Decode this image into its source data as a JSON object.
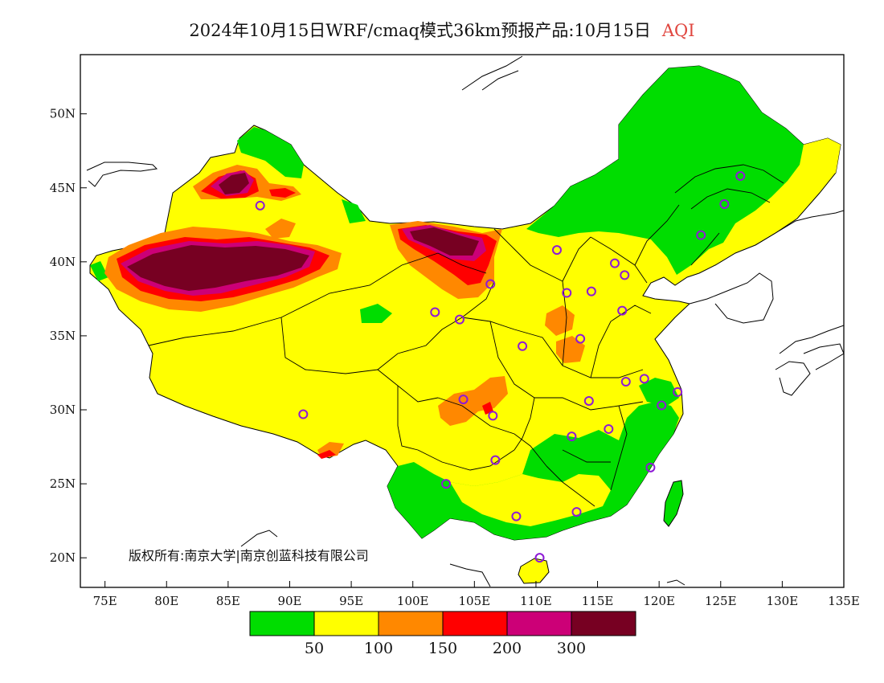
{
  "title": {
    "main": "2024年10月15日WRF/cmaq模式36km预报产品:10月15日",
    "variable": "AQI"
  },
  "map": {
    "lon_range": [
      73,
      135
    ],
    "lat_range": [
      18,
      54
    ],
    "lat_ticks": [
      {
        "value": 20,
        "label": "20N"
      },
      {
        "value": 25,
        "label": "25N"
      },
      {
        "value": 30,
        "label": "30N"
      },
      {
        "value": 35,
        "label": "35N"
      },
      {
        "value": 40,
        "label": "40N"
      },
      {
        "value": 45,
        "label": "45N"
      },
      {
        "value": 50,
        "label": "50N"
      }
    ],
    "lon_ticks": [
      {
        "value": 75,
        "label": "75E"
      },
      {
        "value": 80,
        "label": "80E"
      },
      {
        "value": 85,
        "label": "85E"
      },
      {
        "value": 90,
        "label": "90E"
      },
      {
        "value": 95,
        "label": "95E"
      },
      {
        "value": 100,
        "label": "100E"
      },
      {
        "value": 105,
        "label": "105E"
      },
      {
        "value": 110,
        "label": "110E"
      },
      {
        "value": 115,
        "label": "115E"
      },
      {
        "value": 120,
        "label": "120E"
      },
      {
        "value": 125,
        "label": "125E"
      },
      {
        "value": 130,
        "label": "130E"
      },
      {
        "value": 135,
        "label": "135E"
      }
    ],
    "copyright": "版权所有:南京大学|南京创蓝科技有限公司",
    "cities": [
      [
        87.6,
        43.8
      ],
      [
        91.1,
        29.7
      ],
      [
        101.8,
        36.6
      ],
      [
        103.8,
        36.1
      ],
      [
        106.3,
        38.5
      ],
      [
        108.9,
        34.3
      ],
      [
        104.1,
        30.7
      ],
      [
        106.5,
        29.6
      ],
      [
        106.7,
        26.6
      ],
      [
        102.7,
        25.0
      ],
      [
        108.4,
        22.8
      ],
      [
        110.3,
        20.0
      ],
      [
        113.3,
        23.1
      ],
      [
        112.9,
        28.2
      ],
      [
        114.3,
        30.6
      ],
      [
        115.9,
        28.7
      ],
      [
        113.6,
        34.8
      ],
      [
        112.5,
        37.9
      ],
      [
        114.5,
        38.0
      ],
      [
        111.7,
        40.8
      ],
      [
        116.4,
        39.9
      ],
      [
        117.2,
        39.1
      ],
      [
        117.0,
        36.7
      ],
      [
        117.3,
        31.9
      ],
      [
        118.8,
        32.1
      ],
      [
        120.2,
        30.3
      ],
      [
        121.5,
        31.2
      ],
      [
        119.3,
        26.1
      ],
      [
        123.4,
        41.8
      ],
      [
        125.3,
        43.9
      ],
      [
        126.6,
        45.8
      ]
    ]
  },
  "legend": {
    "colors": [
      "#00dd00",
      "#ffff00",
      "#ff8800",
      "#ff0000",
      "#cc0077",
      "#770022"
    ],
    "labels": [
      "50",
      "100",
      "150",
      "200",
      "300"
    ]
  },
  "colors": {
    "good": "#00dd00",
    "moderate": "#ffff00",
    "usg": "#ff8800",
    "unhealthy": "#ff0000",
    "very_unhealthy": "#cc0077",
    "hazardous": "#770022",
    "city_marker": "#8e1ad6"
  }
}
